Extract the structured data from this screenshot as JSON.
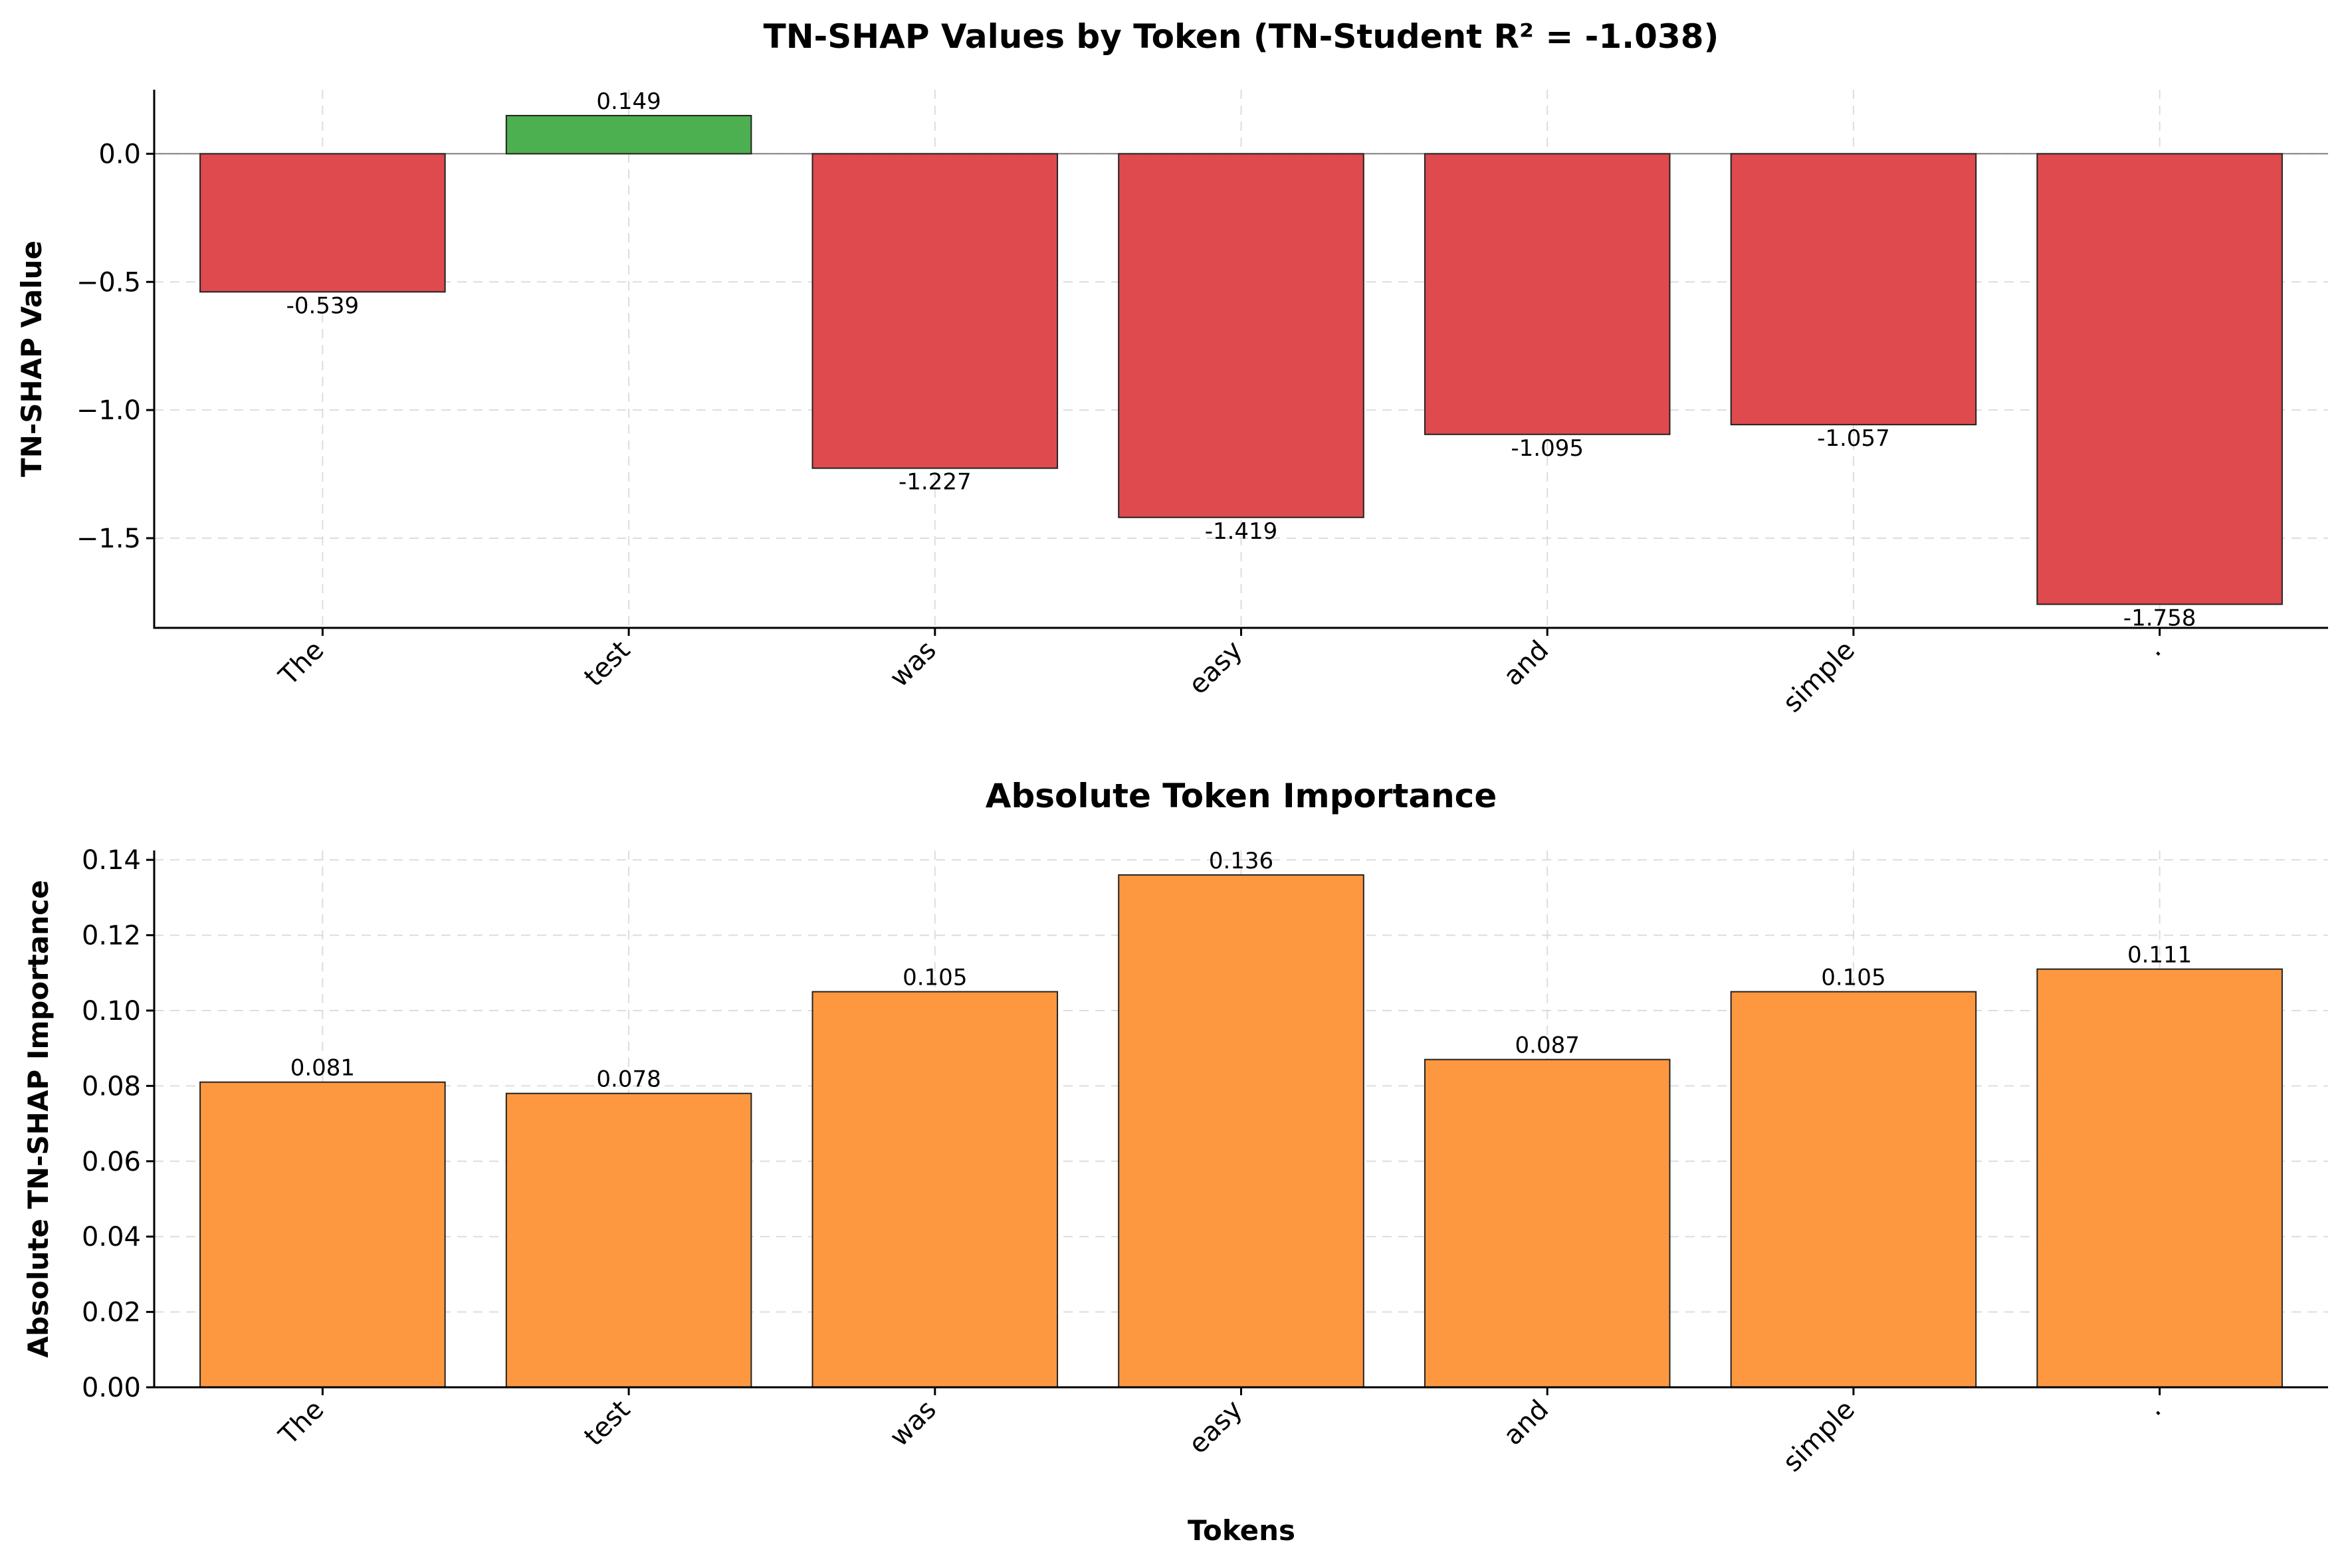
{
  "figure": {
    "xlabel": "Tokens"
  },
  "chart_data": [
    {
      "type": "bar",
      "title": "TN-SHAP Values by Token (TN-Student R² = -1.038)",
      "xlabel": "",
      "ylabel": "TN-SHAP Value",
      "categories": [
        "The",
        "test",
        "was",
        "easy",
        "and",
        "simple",
        "."
      ],
      "values": [
        -0.539,
        0.149,
        -1.227,
        -1.419,
        -1.095,
        -1.057,
        -1.758
      ],
      "data_labels": [
        "-0.539",
        "0.149",
        "-1.227",
        "-1.419",
        "-1.095",
        "-1.057",
        "-1.758"
      ],
      "ylim": [
        -1.85,
        0.25
      ],
      "yticks": [
        0.0,
        -0.5,
        -1.0,
        -1.5
      ],
      "ytick_labels": [
        "0.0",
        "−0.5",
        "−1.0",
        "−1.5"
      ],
      "grid": true,
      "colors": {
        "positive": "#4caf50",
        "negative": "#de4a4d"
      }
    },
    {
      "type": "bar",
      "title": "Absolute Token Importance",
      "xlabel": "Tokens",
      "ylabel": "Absolute TN-SHAP Importance",
      "categories": [
        "The",
        "test",
        "was",
        "easy",
        "and",
        "simple",
        "."
      ],
      "values": [
        0.081,
        0.078,
        0.105,
        0.136,
        0.087,
        0.105,
        0.111
      ],
      "data_labels": [
        "0.081",
        "0.078",
        "0.105",
        "0.136",
        "0.087",
        "0.105",
        "0.111"
      ],
      "ylim": [
        0,
        0.1425
      ],
      "yticks": [
        0.0,
        0.02,
        0.04,
        0.06,
        0.08,
        0.1,
        0.12,
        0.14
      ],
      "ytick_labels": [
        "0.00",
        "0.02",
        "0.04",
        "0.06",
        "0.08",
        "0.10",
        "0.12",
        "0.14"
      ],
      "grid": true,
      "colors": {
        "bar": "#fe9840"
      }
    }
  ]
}
